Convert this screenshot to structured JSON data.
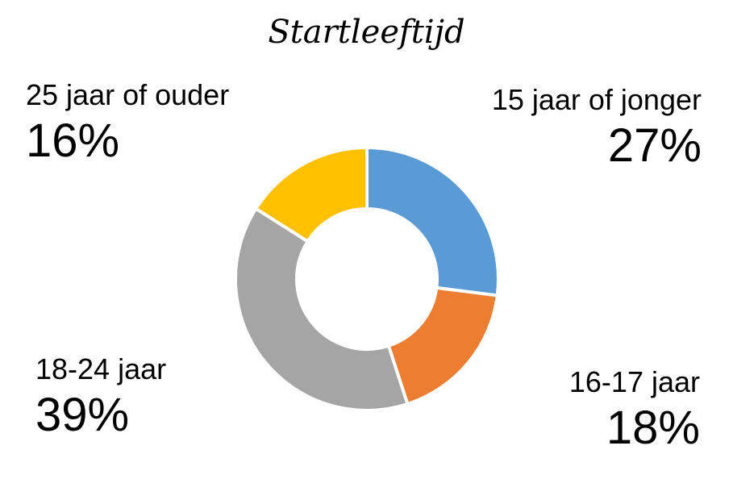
{
  "chart_data": {
    "type": "pie",
    "title": "Startleeftijd",
    "categories": [
      "15 jaar of jonger",
      "16-17 jaar",
      "18-24 jaar",
      "25 jaar of ouder"
    ],
    "values": [
      27,
      18,
      39,
      16
    ],
    "unit": "%",
    "value_labels": [
      "27%",
      "18%",
      "39%",
      "16%"
    ],
    "colors": [
      "#5B9BD5",
      "#ED7D31",
      "#A5A5A5",
      "#FFC000"
    ],
    "donut": true
  }
}
